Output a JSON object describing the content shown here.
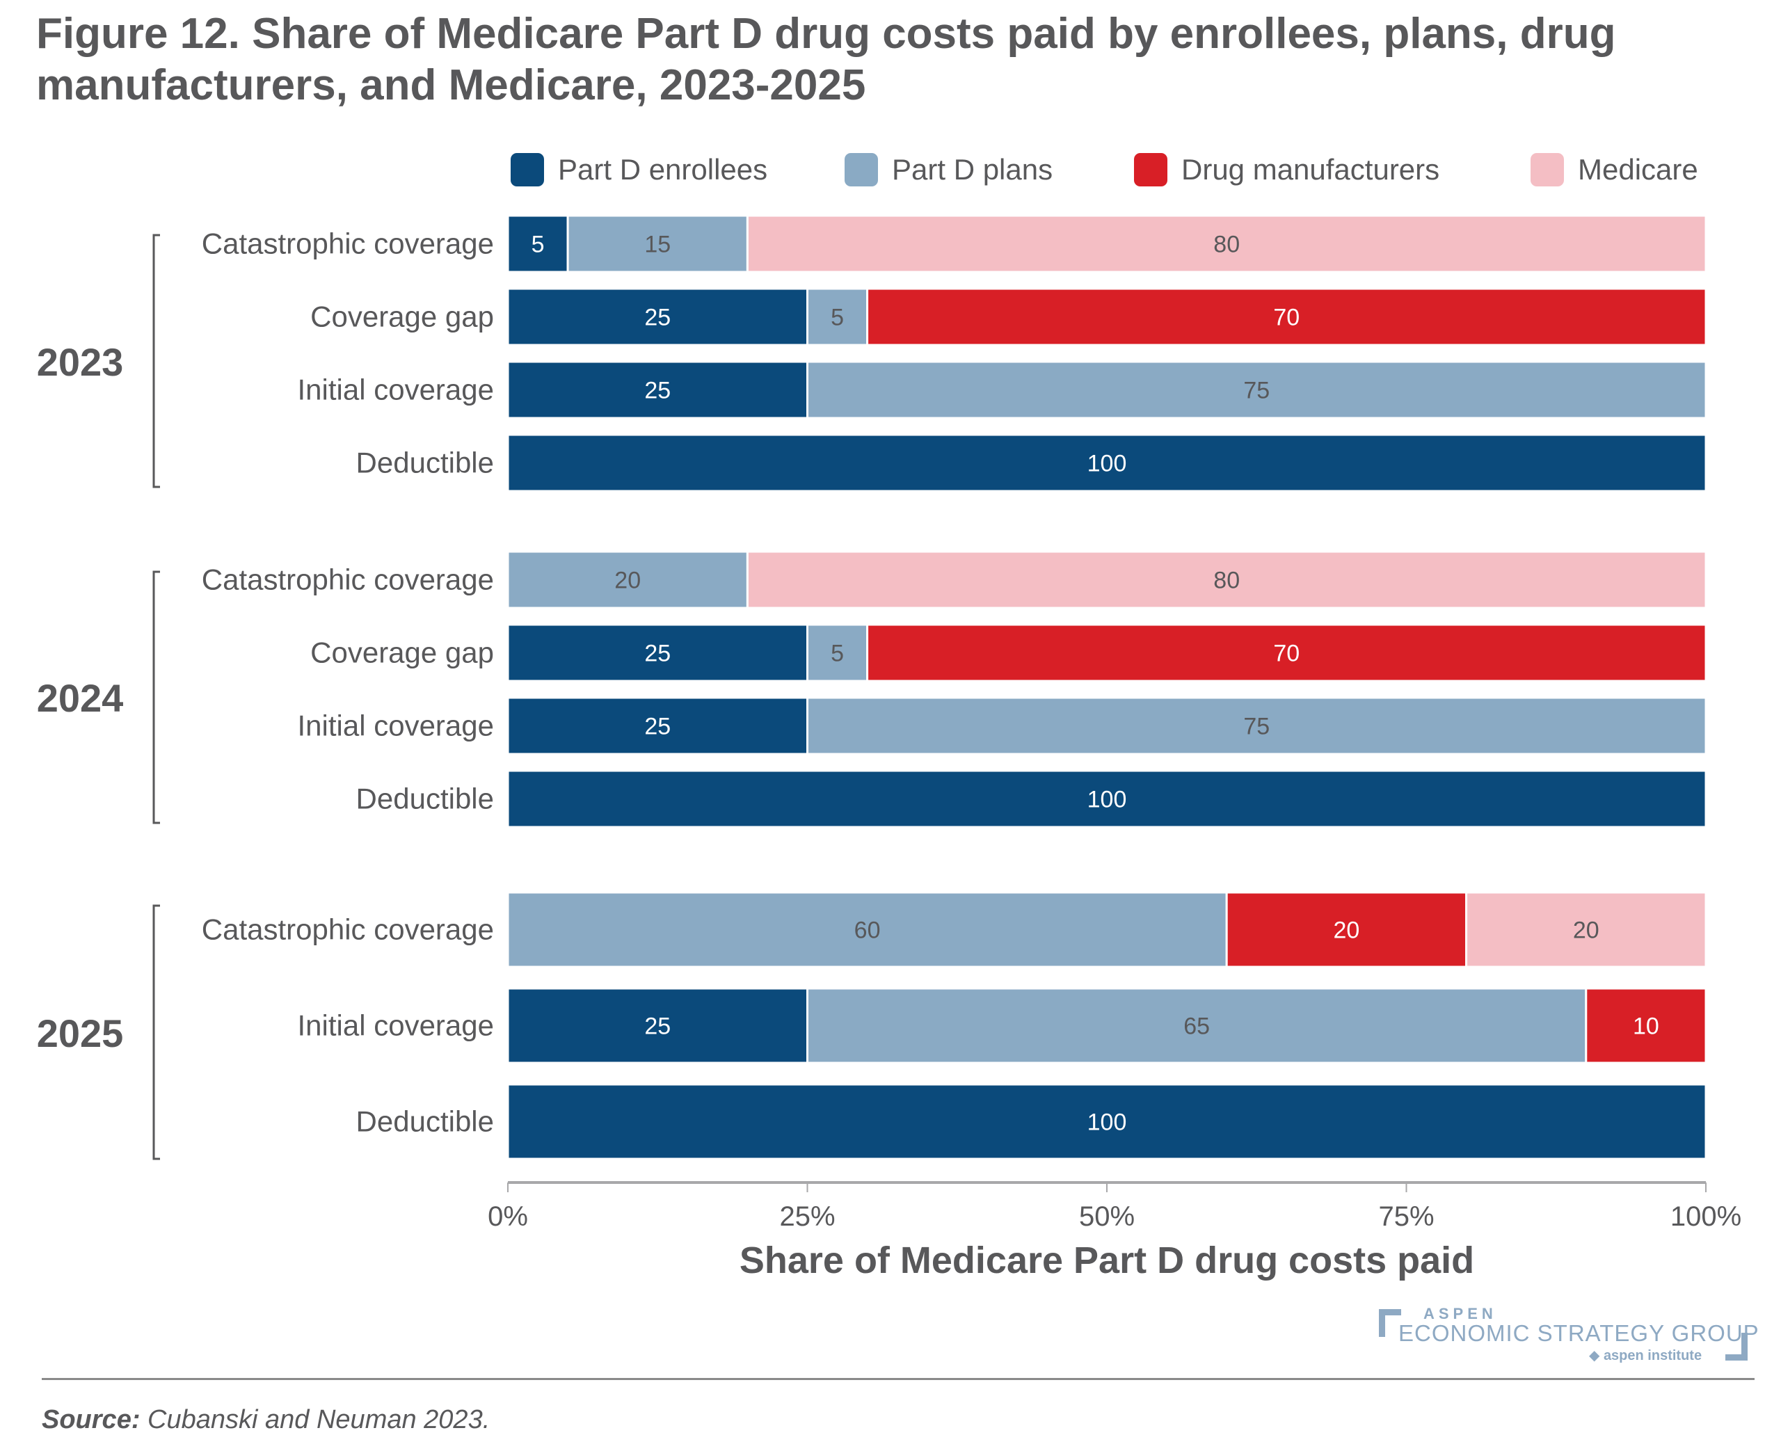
{
  "title": "Figure 12. Share of Medicare Part D drug costs paid by enrollees, plans, drug manufacturers, and Medicare, 2023-2025",
  "colors": {
    "enrollees": "#0b4a7b",
    "plans": "#8aaac4",
    "manufacturers": "#d81f26",
    "medicare": "#f4bec4",
    "text": "#58585a"
  },
  "chart_data": {
    "type": "bar",
    "orientation": "horizontal",
    "stacked": true,
    "title": "Figure 12. Share of Medicare Part D drug costs paid by enrollees, plans, drug manufacturers, and Medicare, 2023-2025",
    "xlabel": "Share of Medicare Part D drug costs paid",
    "ylabel": "",
    "xlim": [
      0,
      100
    ],
    "xticks": [
      0,
      25,
      50,
      75,
      100
    ],
    "xtick_labels": [
      "0%",
      "25%",
      "50%",
      "75%",
      "100%"
    ],
    "grid": false,
    "legend_position": "top",
    "legend": [
      "Part D enrollees",
      "Part D plans",
      "Drug manufacturers",
      "Medicare"
    ],
    "series_keys": [
      "enrollees",
      "plans",
      "manufacturers",
      "medicare"
    ],
    "groups": [
      {
        "year": "2023",
        "rows": [
          {
            "category": "Catastrophic coverage",
            "values": {
              "enrollees": 5,
              "plans": 15,
              "manufacturers": 0,
              "medicare": 80
            }
          },
          {
            "category": "Coverage gap",
            "values": {
              "enrollees": 25,
              "plans": 5,
              "manufacturers": 70,
              "medicare": 0
            }
          },
          {
            "category": "Initial coverage",
            "values": {
              "enrollees": 25,
              "plans": 75,
              "manufacturers": 0,
              "medicare": 0
            }
          },
          {
            "category": "Deductible",
            "values": {
              "enrollees": 100,
              "plans": 0,
              "manufacturers": 0,
              "medicare": 0
            }
          }
        ]
      },
      {
        "year": "2024",
        "rows": [
          {
            "category": "Catastrophic coverage",
            "values": {
              "enrollees": 0,
              "plans": 20,
              "manufacturers": 0,
              "medicare": 80
            }
          },
          {
            "category": "Coverage gap",
            "values": {
              "enrollees": 25,
              "plans": 5,
              "manufacturers": 70,
              "medicare": 0
            }
          },
          {
            "category": "Initial coverage",
            "values": {
              "enrollees": 25,
              "plans": 75,
              "manufacturers": 0,
              "medicare": 0
            }
          },
          {
            "category": "Deductible",
            "values": {
              "enrollees": 100,
              "plans": 0,
              "manufacturers": 0,
              "medicare": 0
            }
          }
        ]
      },
      {
        "year": "2025",
        "rows": [
          {
            "category": "Catastrophic coverage",
            "values": {
              "enrollees": 0,
              "plans": 60,
              "manufacturers": 20,
              "medicare": 20
            }
          },
          {
            "category": "Initial coverage",
            "values": {
              "enrollees": 25,
              "plans": 65,
              "manufacturers": 10,
              "medicare": 0
            }
          },
          {
            "category": "Deductible",
            "values": {
              "enrollees": 100,
              "plans": 0,
              "manufacturers": 0,
              "medicare": 0
            }
          }
        ]
      }
    ]
  },
  "logo": {
    "line1": "ASPEN",
    "line2": "ECONOMIC STRATEGY GROUP",
    "line3": "aspen institute"
  },
  "source": {
    "label": "Source:",
    "text": " Cubanski and Neuman 2023."
  }
}
